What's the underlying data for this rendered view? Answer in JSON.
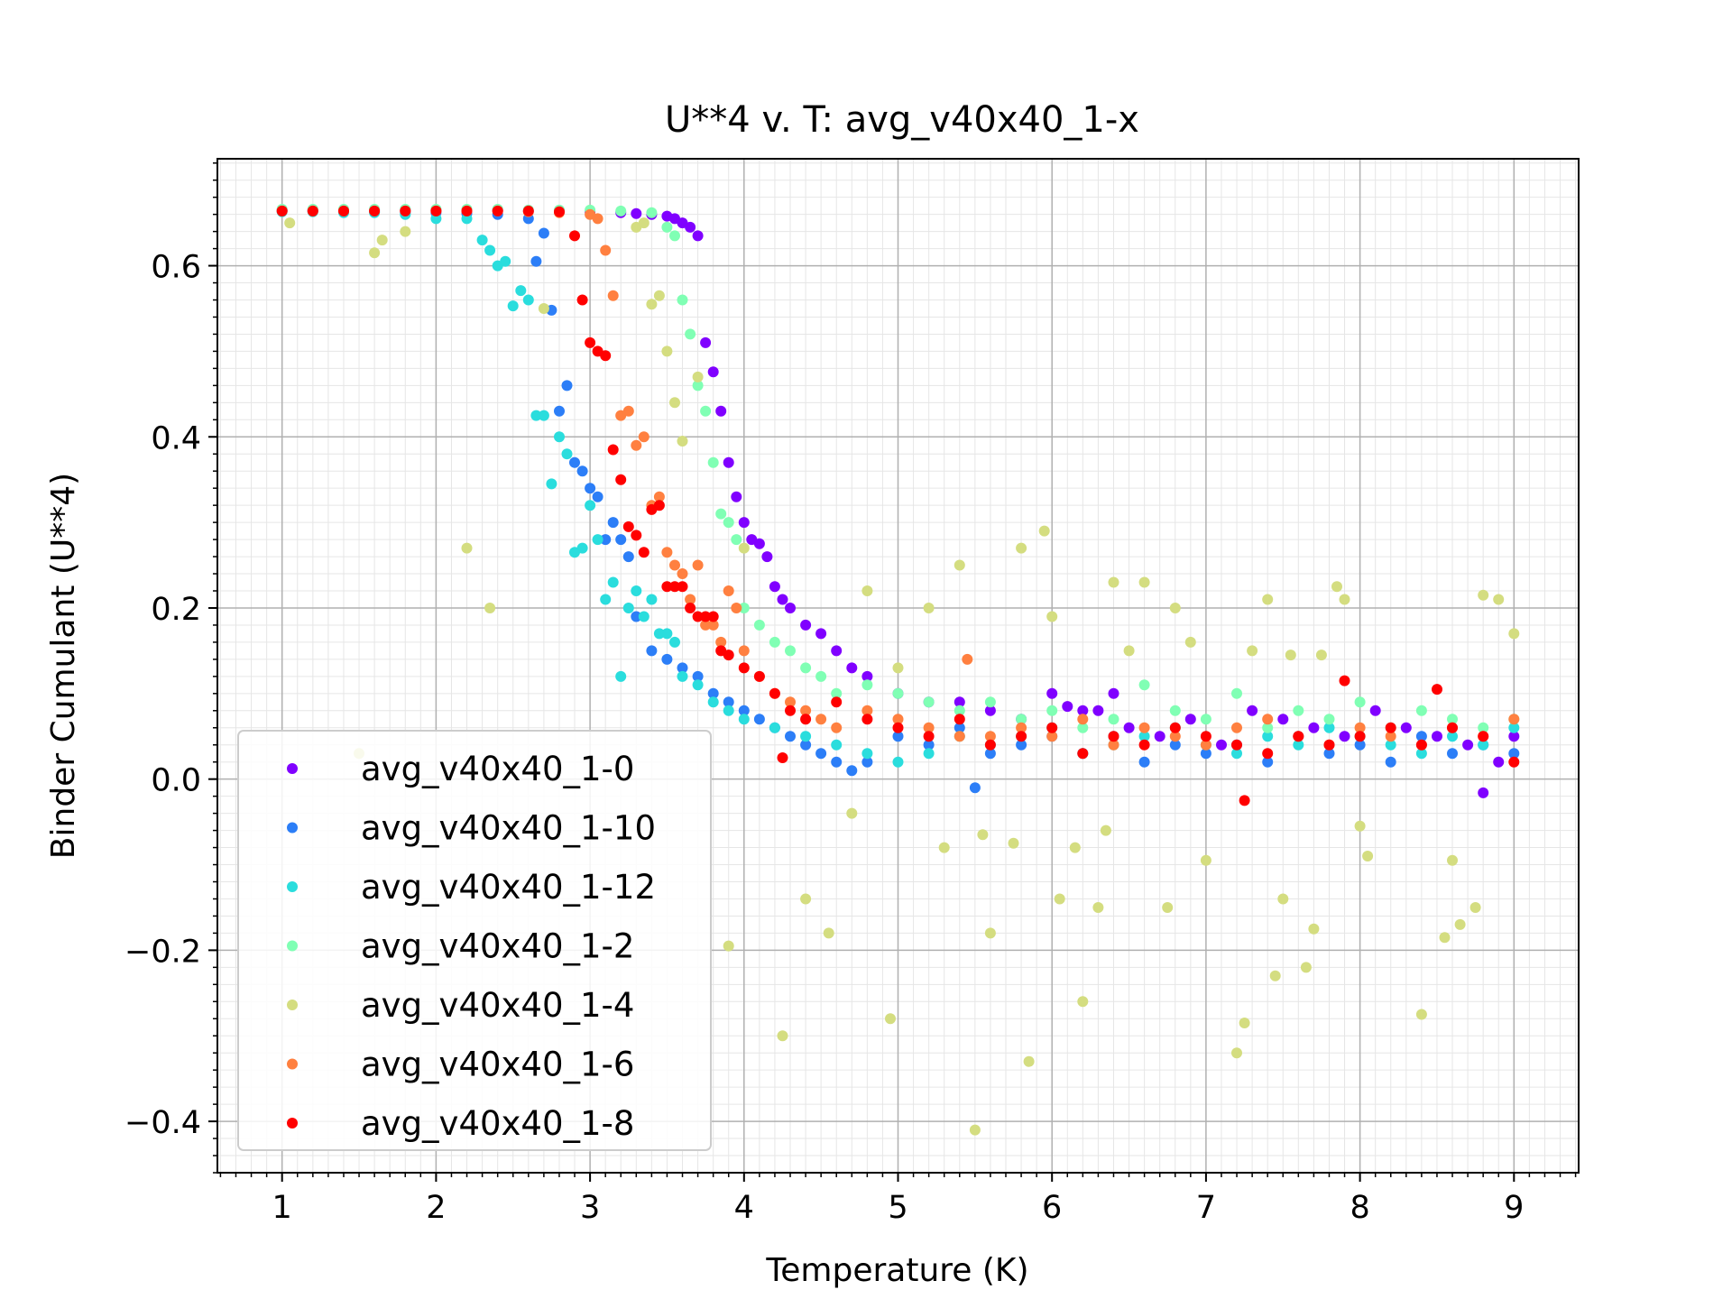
{
  "chart_data": {
    "type": "scatter",
    "title": "U**4 v. T: avg_v40x40_1-x",
    "xlabel": "Temperature (K)",
    "ylabel": "Binder Cumulant (U**4)",
    "xlim": [
      0.58,
      9.42
    ],
    "ylim": [
      -0.46,
      0.725
    ],
    "xticks": [
      1,
      2,
      3,
      4,
      5,
      6,
      7,
      8,
      9
    ],
    "xtick_labels": [
      "1",
      "2",
      "3",
      "4",
      "5",
      "6",
      "7",
      "8",
      "9"
    ],
    "yticks": [
      -0.4,
      -0.2,
      0.0,
      0.2,
      0.4,
      0.6
    ],
    "ytick_labels": [
      "−0.4",
      "−0.2",
      "0.0",
      "0.2",
      "0.4",
      "0.6"
    ],
    "grid": true,
    "minor_grid": true,
    "legend_position": "lower-left",
    "series": [
      {
        "name": "avg_v40x40_1-0",
        "color": "#8000ff",
        "x": [
          1.0,
          1.2,
          1.4,
          1.6,
          1.8,
          2.0,
          2.2,
          2.4,
          2.6,
          2.8,
          3.0,
          3.2,
          3.3,
          3.4,
          3.5,
          3.55,
          3.6,
          3.65,
          3.7,
          3.75,
          3.8,
          3.85,
          3.9,
          3.95,
          4.0,
          4.05,
          4.1,
          4.15,
          4.2,
          4.25,
          4.3,
          4.4,
          4.5,
          4.6,
          4.7,
          4.8,
          5.0,
          5.2,
          5.4,
          5.6,
          5.8,
          6.0,
          6.1,
          6.2,
          6.3,
          6.4,
          6.5,
          6.7,
          6.9,
          7.1,
          7.3,
          7.5,
          7.7,
          7.9,
          8.1,
          8.3,
          8.5,
          8.7,
          8.8,
          8.9,
          9.0
        ],
        "y": [
          0.665,
          0.665,
          0.665,
          0.665,
          0.665,
          0.665,
          0.665,
          0.665,
          0.664,
          0.664,
          0.663,
          0.662,
          0.661,
          0.66,
          0.658,
          0.655,
          0.65,
          0.645,
          0.635,
          0.51,
          0.476,
          0.43,
          0.37,
          0.33,
          0.3,
          0.28,
          0.275,
          0.26,
          0.225,
          0.21,
          0.2,
          0.18,
          0.17,
          0.15,
          0.13,
          0.12,
          0.1,
          0.09,
          0.09,
          0.08,
          0.07,
          0.1,
          0.085,
          0.08,
          0.08,
          0.1,
          0.06,
          0.05,
          0.07,
          0.04,
          0.08,
          0.07,
          0.06,
          0.05,
          0.08,
          0.06,
          0.05,
          0.04,
          -0.016,
          0.02,
          0.05
        ]
      },
      {
        "name": "avg_v40x40_1-10",
        "color": "#2c7ef7",
        "x": [
          1.0,
          1.2,
          1.4,
          1.6,
          1.8,
          2.0,
          2.2,
          2.4,
          2.6,
          2.65,
          2.7,
          2.75,
          2.8,
          2.85,
          2.9,
          2.95,
          3.0,
          3.05,
          3.1,
          3.15,
          3.2,
          3.25,
          3.3,
          3.4,
          3.5,
          3.6,
          3.7,
          3.8,
          3.9,
          4.0,
          4.1,
          4.2,
          4.3,
          4.4,
          4.5,
          4.6,
          4.7,
          4.8,
          5.0,
          5.2,
          5.4,
          5.5,
          5.6,
          5.8,
          6.0,
          6.2,
          6.4,
          6.6,
          6.8,
          7.0,
          7.2,
          7.4,
          7.6,
          7.8,
          8.0,
          8.2,
          8.4,
          8.6,
          8.8,
          9.0
        ],
        "y": [
          0.664,
          0.664,
          0.663,
          0.663,
          0.662,
          0.662,
          0.661,
          0.66,
          0.655,
          0.605,
          0.638,
          0.548,
          0.43,
          0.46,
          0.37,
          0.36,
          0.34,
          0.33,
          0.28,
          0.3,
          0.28,
          0.26,
          0.19,
          0.15,
          0.14,
          0.13,
          0.12,
          0.1,
          0.09,
          0.08,
          0.07,
          0.06,
          0.05,
          0.04,
          0.03,
          0.02,
          0.01,
          0.02,
          0.05,
          0.04,
          0.06,
          -0.01,
          0.03,
          0.04,
          0.05,
          0.03,
          0.05,
          0.02,
          0.04,
          0.03,
          0.04,
          0.02,
          0.05,
          0.03,
          0.04,
          0.02,
          0.05,
          0.03,
          0.04,
          0.03
        ]
      },
      {
        "name": "avg_v40x40_1-12",
        "color": "#2adddd",
        "x": [
          1.0,
          1.2,
          1.4,
          1.6,
          1.8,
          2.0,
          2.2,
          2.3,
          2.35,
          2.4,
          2.45,
          2.5,
          2.55,
          2.6,
          2.65,
          2.7,
          2.75,
          2.8,
          2.85,
          2.9,
          2.95,
          3.0,
          3.05,
          3.1,
          3.15,
          3.2,
          3.25,
          3.3,
          3.35,
          3.4,
          3.45,
          3.5,
          3.55,
          3.6,
          3.7,
          3.8,
          3.9,
          4.0,
          4.2,
          4.4,
          4.6,
          4.8,
          5.0,
          5.2,
          5.4,
          5.6,
          5.8,
          6.0,
          6.2,
          6.4,
          6.6,
          6.8,
          7.0,
          7.2,
          7.4,
          7.6,
          7.8,
          8.0,
          8.2,
          8.4,
          8.6,
          8.8,
          9.0
        ],
        "y": [
          0.663,
          0.663,
          0.662,
          0.662,
          0.66,
          0.655,
          0.655,
          0.63,
          0.618,
          0.6,
          0.605,
          0.553,
          0.571,
          0.56,
          0.425,
          0.425,
          0.345,
          0.4,
          0.38,
          0.265,
          0.27,
          0.32,
          0.28,
          0.21,
          0.23,
          0.12,
          0.2,
          0.22,
          0.19,
          0.21,
          0.17,
          0.17,
          0.16,
          0.12,
          0.11,
          0.09,
          0.08,
          0.07,
          0.06,
          0.05,
          0.04,
          0.03,
          0.02,
          0.03,
          0.05,
          0.04,
          0.05,
          0.06,
          0.03,
          0.04,
          0.05,
          0.06,
          0.04,
          0.03,
          0.05,
          0.04,
          0.06,
          0.05,
          0.04,
          0.03,
          0.05,
          0.04,
          0.06
        ]
      },
      {
        "name": "avg_v40x40_1-2",
        "color": "#80ffb4",
        "x": [
          1.0,
          1.2,
          1.4,
          1.6,
          1.8,
          2.0,
          2.2,
          2.4,
          2.6,
          2.8,
          3.0,
          3.2,
          3.4,
          3.5,
          3.55,
          3.6,
          3.65,
          3.7,
          3.75,
          3.8,
          3.85,
          3.9,
          3.95,
          4.0,
          4.1,
          4.2,
          4.3,
          4.4,
          4.5,
          4.6,
          4.8,
          5.0,
          5.2,
          5.4,
          5.6,
          5.8,
          6.0,
          6.2,
          6.4,
          6.6,
          6.8,
          7.0,
          7.2,
          7.4,
          7.6,
          7.8,
          8.0,
          8.2,
          8.4,
          8.6,
          8.8,
          9.0
        ],
        "y": [
          0.666,
          0.666,
          0.666,
          0.666,
          0.666,
          0.666,
          0.666,
          0.666,
          0.665,
          0.665,
          0.665,
          0.664,
          0.662,
          0.645,
          0.635,
          0.56,
          0.52,
          0.46,
          0.43,
          0.37,
          0.31,
          0.3,
          0.28,
          0.2,
          0.18,
          0.16,
          0.15,
          0.13,
          0.12,
          0.1,
          0.11,
          0.1,
          0.09,
          0.08,
          0.09,
          0.07,
          0.08,
          0.06,
          0.07,
          0.11,
          0.08,
          0.07,
          0.1,
          0.06,
          0.08,
          0.07,
          0.09,
          0.06,
          0.08,
          0.07,
          0.06,
          0.07
        ]
      },
      {
        "name": "avg_v40x40_1-4",
        "color": "#d4dd80",
        "x": [
          1.05,
          1.5,
          1.6,
          1.65,
          1.8,
          2.2,
          2.35,
          2.7,
          3.3,
          3.35,
          3.4,
          3.45,
          3.5,
          3.55,
          3.6,
          3.7,
          3.9,
          4.0,
          4.25,
          4.4,
          4.55,
          4.7,
          4.8,
          4.95,
          5.0,
          5.2,
          5.3,
          5.4,
          5.5,
          5.55,
          5.6,
          5.75,
          5.8,
          5.85,
          5.95,
          6.0,
          6.05,
          6.15,
          6.2,
          6.3,
          6.35,
          6.4,
          6.5,
          6.6,
          6.75,
          6.8,
          6.9,
          7.0,
          7.2,
          7.25,
          7.3,
          7.4,
          7.45,
          7.5,
          7.55,
          7.65,
          7.7,
          7.75,
          7.85,
          7.9,
          8.0,
          8.05,
          8.4,
          8.55,
          8.6,
          8.65,
          8.75,
          8.8,
          8.9,
          9.0
        ],
        "y": [
          0.65,
          0.03,
          0.615,
          0.63,
          0.64,
          0.27,
          0.2,
          0.55,
          0.645,
          0.65,
          0.555,
          0.565,
          0.5,
          0.44,
          0.395,
          0.47,
          -0.195,
          0.27,
          -0.3,
          -0.14,
          -0.18,
          -0.04,
          0.22,
          -0.28,
          0.13,
          0.2,
          -0.08,
          0.25,
          -0.41,
          -0.065,
          -0.18,
          -0.075,
          0.27,
          -0.33,
          0.29,
          0.19,
          -0.14,
          -0.08,
          -0.26,
          -0.15,
          -0.06,
          0.23,
          0.15,
          0.23,
          -0.15,
          0.2,
          0.16,
          -0.095,
          -0.32,
          -0.285,
          0.15,
          0.21,
          -0.23,
          -0.14,
          0.145,
          -0.22,
          -0.175,
          0.145,
          0.225,
          0.21,
          -0.055,
          -0.09,
          -0.275,
          -0.185,
          -0.095,
          -0.17,
          -0.15,
          0.215,
          0.21,
          0.17
        ]
      },
      {
        "name": "avg_v40x40_1-6",
        "color": "#ff8040",
        "x": [
          1.0,
          1.2,
          1.4,
          1.6,
          1.8,
          2.0,
          2.2,
          2.4,
          2.6,
          2.8,
          3.0,
          3.05,
          3.1,
          3.15,
          3.2,
          3.25,
          3.3,
          3.35,
          3.4,
          3.45,
          3.5,
          3.55,
          3.6,
          3.65,
          3.7,
          3.75,
          3.8,
          3.85,
          3.9,
          3.95,
          4.0,
          4.1,
          4.2,
          4.3,
          4.4,
          4.5,
          4.6,
          4.8,
          5.0,
          5.2,
          5.4,
          5.45,
          5.6,
          5.8,
          6.0,
          6.2,
          6.4,
          6.6,
          6.8,
          7.0,
          7.2,
          7.4,
          7.6,
          7.8,
          8.0,
          8.2,
          8.4,
          8.6,
          8.8,
          9.0
        ],
        "y": [
          0.664,
          0.664,
          0.664,
          0.664,
          0.664,
          0.664,
          0.664,
          0.664,
          0.663,
          0.662,
          0.66,
          0.655,
          0.618,
          0.565,
          0.425,
          0.43,
          0.39,
          0.4,
          0.32,
          0.33,
          0.265,
          0.25,
          0.24,
          0.21,
          0.25,
          0.18,
          0.18,
          0.16,
          0.22,
          0.2,
          0.15,
          0.12,
          0.1,
          0.09,
          0.08,
          0.07,
          0.06,
          0.08,
          0.07,
          0.06,
          0.05,
          0.14,
          0.05,
          0.06,
          0.05,
          0.07,
          0.04,
          0.06,
          0.05,
          0.04,
          0.06,
          0.07,
          0.05,
          0.04,
          0.06,
          0.05,
          0.04,
          0.06,
          0.05,
          0.07
        ]
      },
      {
        "name": "avg_v40x40_1-8",
        "color": "#ff0000",
        "x": [
          1.0,
          1.2,
          1.4,
          1.6,
          1.8,
          2.0,
          2.2,
          2.4,
          2.6,
          2.8,
          2.9,
          2.95,
          3.0,
          3.05,
          3.1,
          3.15,
          3.2,
          3.25,
          3.3,
          3.35,
          3.4,
          3.45,
          3.5,
          3.55,
          3.6,
          3.65,
          3.7,
          3.75,
          3.8,
          3.85,
          3.9,
          4.0,
          4.1,
          4.2,
          4.25,
          4.3,
          4.4,
          4.6,
          4.8,
          5.0,
          5.2,
          5.4,
          5.6,
          5.8,
          6.0,
          6.2,
          6.4,
          6.6,
          6.8,
          7.0,
          7.2,
          7.25,
          7.4,
          7.6,
          7.8,
          7.9,
          8.0,
          8.2,
          8.4,
          8.5,
          8.6,
          8.8,
          9.0
        ],
        "y": [
          0.664,
          0.664,
          0.664,
          0.664,
          0.664,
          0.664,
          0.664,
          0.664,
          0.664,
          0.663,
          0.635,
          0.56,
          0.51,
          0.5,
          0.495,
          0.385,
          0.35,
          0.295,
          0.285,
          0.265,
          0.315,
          0.32,
          0.225,
          0.225,
          0.225,
          0.2,
          0.19,
          0.19,
          0.19,
          0.15,
          0.145,
          0.13,
          0.12,
          0.1,
          0.025,
          0.08,
          0.07,
          0.09,
          0.07,
          0.06,
          0.05,
          0.07,
          0.04,
          0.05,
          0.06,
          0.03,
          0.05,
          0.04,
          0.06,
          0.05,
          0.04,
          -0.025,
          0.03,
          0.05,
          0.04,
          0.115,
          0.05,
          0.06,
          0.04,
          0.105,
          0.06,
          0.05,
          0.02
        ]
      }
    ]
  }
}
